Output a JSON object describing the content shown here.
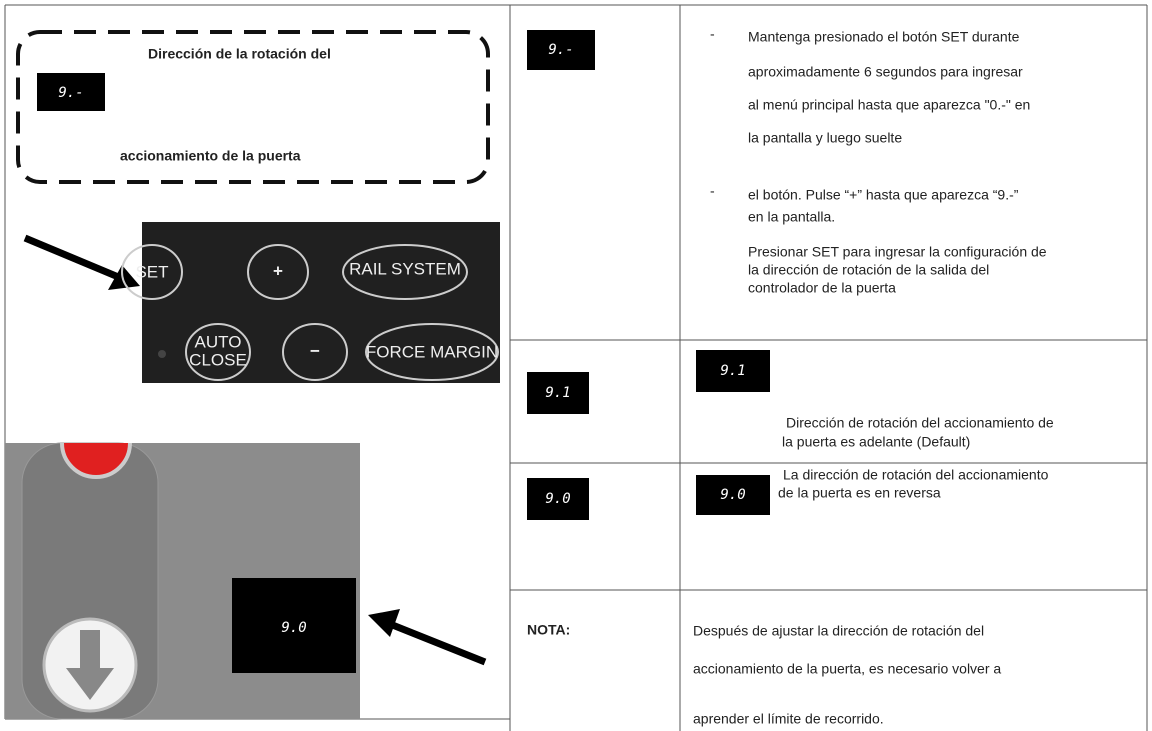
{
  "left": {
    "display": "9.-",
    "heading": [
      "Dirección de la rotación del",
      "accionamiento de la puerta"
    ],
    "buttons": [
      "SET",
      "+",
      "RAIL SYSTEM",
      "AUTO",
      "CLOSE",
      "−",
      "FORCE MARGIN"
    ],
    "photo_display": "9.0"
  },
  "rows": [
    {
      "display": "9.-",
      "bullet": "-",
      "lines": [
        "Mantenga presionado el botón SET durante",
        "aproximadamente 6 segundos para ingresar",
        "al menú principal hasta que aparezca \"0.-\" en",
        "la pantalla y luego suelte"
      ],
      "bullet2": "-",
      "lines2": [
        "el botón. Pulse “+” hasta que aparezca “9.-”",
        "en la pantalla.",
        "Presionar SET para ingresar la configuración de",
        " la dirección de rotación de la salida del",
        "controlador de la puerta"
      ]
    },
    {
      "display": "9.1",
      "display2": "9.1",
      "lines": [
        "Dirección de rotación del accionamiento de",
        "la puerta es adelante (Default)"
      ]
    },
    {
      "display": "9.0",
      "display2": "9.0",
      "lines": [
        "La dirección de rotación del accionamiento",
        "de la puerta es en reversa"
      ]
    },
    {
      "label": "NOTA:",
      "lines": [
        "Después de ajustar la dirección de rotación del",
        "accionamiento de la puerta, es necesario volver a",
        "aprender el límite de recorrido."
      ]
    }
  ]
}
